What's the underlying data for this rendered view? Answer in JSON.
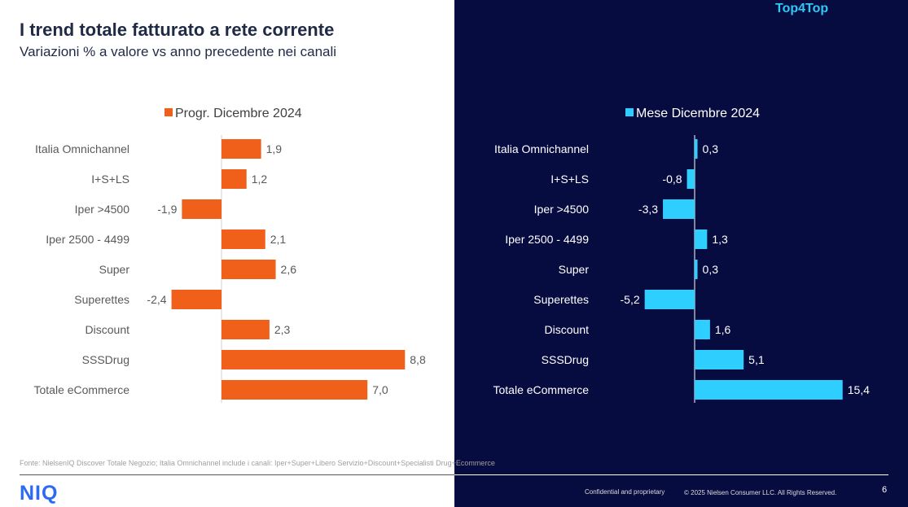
{
  "header": {
    "title": "I trend totale fatturato a rete corrente",
    "subtitle": "Variazioni % a valore vs anno precedente nei canali",
    "brand": "Top4Top"
  },
  "chart_data": [
    {
      "type": "bar",
      "orientation": "horizontal",
      "legend": "Progr. Dicembre 2024",
      "color": "#f0601a",
      "categories": [
        "Italia Omnichannel",
        "I+S+LS",
        "Iper >4500",
        "Iper 2500 - 4499",
        "Super",
        "Superettes",
        "Discount",
        "SSSDrug",
        "Totale eCommerce"
      ],
      "values": [
        1.9,
        1.2,
        -1.9,
        2.1,
        2.6,
        -2.4,
        2.3,
        8.8,
        7.0
      ],
      "labels": [
        "1,9",
        "1,2",
        "-1,9",
        "2,1",
        "2,6",
        "-2,4",
        "2,3",
        "8,8",
        "7,0"
      ]
    },
    {
      "type": "bar",
      "orientation": "horizontal",
      "legend": "Mese Dicembre 2024",
      "color": "#2ecfff",
      "categories": [
        "Italia Omnichannel",
        "I+S+LS",
        "Iper >4500",
        "Iper 2500 - 4499",
        "Super",
        "Superettes",
        "Discount",
        "SSSDrug",
        "Totale eCommerce"
      ],
      "values": [
        0.3,
        -0.8,
        -3.3,
        1.3,
        0.3,
        -5.2,
        1.6,
        5.1,
        15.4
      ],
      "labels": [
        "0,3",
        "-0,8",
        "-3,3",
        "1,3",
        "0,3",
        "-5,2",
        "1,6",
        "5,1",
        "15,4"
      ]
    }
  ],
  "footer": {
    "source": "Fonte: NielsenIQ Discover Totale Negozio; Italia Omnichannel include i canali: Iper+Super+Libero Servizio+Discount+Specialisti Drug+Ecommerce",
    "logo": "NIQ",
    "confidential": "Confidential and proprietary",
    "copyright": "© 2025 Nielsen Consumer LLC. All Rights Reserved.",
    "page": "6"
  }
}
